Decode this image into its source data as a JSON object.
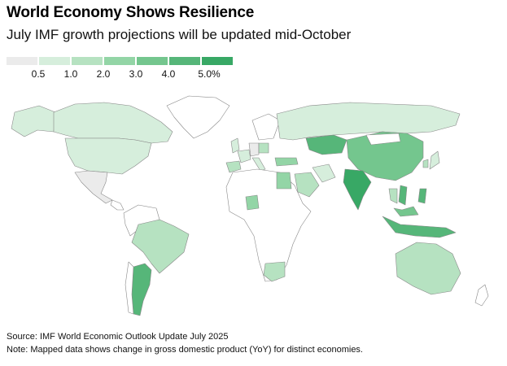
{
  "header": {
    "title": "World Economy Shows Resilience",
    "subtitle": "July IMF growth projections will be updated mid-October"
  },
  "legend": {
    "bins": [
      {
        "color": "#ebebeb"
      },
      {
        "color": "#d6eedc"
      },
      {
        "color": "#b6e2c1"
      },
      {
        "color": "#93d5a6"
      },
      {
        "color": "#74c68e"
      },
      {
        "color": "#56b679"
      },
      {
        "color": "#38a865"
      }
    ],
    "labels": [
      "0.5",
      "1.0",
      "2.0",
      "3.0",
      "4.0",
      "5.0%"
    ]
  },
  "map_data": {
    "metric": "change in gross domestic product (YoY)",
    "regions": [
      {
        "name": "Canada",
        "bin": 1
      },
      {
        "name": "United States",
        "bin": 1
      },
      {
        "name": "Mexico",
        "bin": 0
      },
      {
        "name": "Brazil",
        "bin": 2
      },
      {
        "name": "Argentina",
        "bin": 5
      },
      {
        "name": "Russia",
        "bin": 1
      },
      {
        "name": "China",
        "bin": 4
      },
      {
        "name": "Kazakhstan",
        "bin": 5
      },
      {
        "name": "India",
        "bin": 6
      },
      {
        "name": "Indonesia",
        "bin": 5
      },
      {
        "name": "Australia",
        "bin": 2
      },
      {
        "name": "Saudi Arabia",
        "bin": 2
      },
      {
        "name": "Egypt",
        "bin": 3
      },
      {
        "name": "Nigeria",
        "bin": 3
      },
      {
        "name": "South Africa",
        "bin": 2
      },
      {
        "name": "Iran",
        "bin": 1
      },
      {
        "name": "Turkey",
        "bin": 3
      },
      {
        "name": "United Kingdom",
        "bin": 1
      },
      {
        "name": "Spain",
        "bin": 2
      },
      {
        "name": "France",
        "bin": 1
      },
      {
        "name": "Germany",
        "bin": 0
      },
      {
        "name": "Italy",
        "bin": 1
      },
      {
        "name": "Poland",
        "bin": 2
      },
      {
        "name": "Japan",
        "bin": 1
      },
      {
        "name": "South Korea",
        "bin": 2
      },
      {
        "name": "Thailand",
        "bin": 2
      },
      {
        "name": "Vietnam",
        "bin": 5
      },
      {
        "name": "Philippines",
        "bin": 5
      },
      {
        "name": "Malaysia",
        "bin": 4
      }
    ]
  },
  "footer": {
    "source": "Source: IMF World Economic Outlook Update July 2025",
    "note": "Note: Mapped data shows change in gross domestic product (YoY) for distinct economies."
  }
}
